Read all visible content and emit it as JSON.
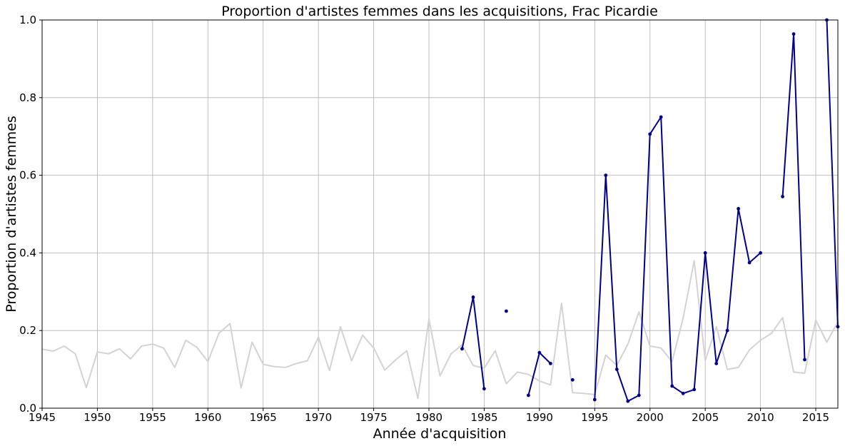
{
  "chart_data": {
    "type": "line",
    "title": "Proportion d'artistes femmes dans les acquisitions, Frac Picardie",
    "xlabel": "Année d'acquisition",
    "ylabel": "Proportion d'artistes femmes",
    "xlim": [
      1945,
      2017
    ],
    "ylim": [
      0,
      1.0
    ],
    "grid": true,
    "x_ticks": [
      "1945",
      "1950",
      "1955",
      "1960",
      "1965",
      "1970",
      "1975",
      "1980",
      "1985",
      "1990",
      "1995",
      "2000",
      "2005",
      "2010",
      "2015"
    ],
    "y_ticks": [
      "0.0",
      "0.2",
      "0.4",
      "0.6",
      "0.8",
      "1.0"
    ],
    "series": [
      {
        "color": "#d3d3d3",
        "markers": false,
        "x": [
          1945,
          1946,
          1947,
          1948,
          1949,
          1950,
          1951,
          1952,
          1953,
          1954,
          1955,
          1956,
          1957,
          1958,
          1959,
          1960,
          1961,
          1962,
          1963,
          1964,
          1965,
          1966,
          1967,
          1968,
          1969,
          1970,
          1971,
          1972,
          1973,
          1974,
          1975,
          1976,
          1977,
          1978,
          1979,
          1980,
          1981,
          1982,
          1983,
          1984,
          1985,
          1986,
          1987,
          1988,
          1989,
          1990,
          1991,
          1992,
          1993,
          1994,
          1995,
          1996,
          1997,
          1998,
          1999,
          2000,
          2001,
          2002,
          2003,
          2004,
          2005,
          2006,
          2007,
          2008,
          2009,
          2010,
          2011,
          2012,
          2013,
          2014,
          2015,
          2016,
          2017
        ],
        "y": [
          0.152,
          0.147,
          0.16,
          0.14,
          0.053,
          0.145,
          0.14,
          0.153,
          0.127,
          0.16,
          0.165,
          0.155,
          0.105,
          0.175,
          0.157,
          0.12,
          0.193,
          0.218,
          0.052,
          0.17,
          0.113,
          0.107,
          0.105,
          0.115,
          0.122,
          0.183,
          0.097,
          0.21,
          0.122,
          0.188,
          0.155,
          0.098,
          0.125,
          0.148,
          0.025,
          0.23,
          0.083,
          0.14,
          0.163,
          0.11,
          0.103,
          0.148,
          0.063,
          0.093,
          0.087,
          0.07,
          0.06,
          0.27,
          0.04,
          0.038,
          0.035,
          0.137,
          0.11,
          0.165,
          0.248,
          0.16,
          0.155,
          0.12,
          0.232,
          0.38,
          0.123,
          0.21,
          0.1,
          0.105,
          0.15,
          0.175,
          0.193,
          0.233,
          0.093,
          0.09,
          0.227,
          0.17,
          0.222
        ]
      },
      {
        "color": "#00008b",
        "markers": true,
        "x": [
          1983,
          1984,
          1985,
          1986,
          1987,
          1988,
          1989,
          1990,
          1991,
          1992,
          1993,
          1994,
          1995,
          1996,
          1997,
          1998,
          1999,
          2000,
          2001,
          2002,
          2003,
          2004,
          2005,
          2006,
          2007,
          2008,
          2009,
          2010,
          2011,
          2012,
          2013,
          2014,
          2015,
          2016,
          2017
        ],
        "y": [
          0.153,
          0.286,
          0.05,
          null,
          0.25,
          null,
          0.033,
          0.143,
          0.115,
          null,
          0.073,
          null,
          0.022,
          0.6,
          0.1,
          0.018,
          0.033,
          0.706,
          0.75,
          0.057,
          0.038,
          0.048,
          0.4,
          0.115,
          0.2,
          0.514,
          0.375,
          0.4,
          null,
          0.545,
          0.964,
          0.125,
          null,
          1.0,
          0.21
        ]
      }
    ]
  }
}
